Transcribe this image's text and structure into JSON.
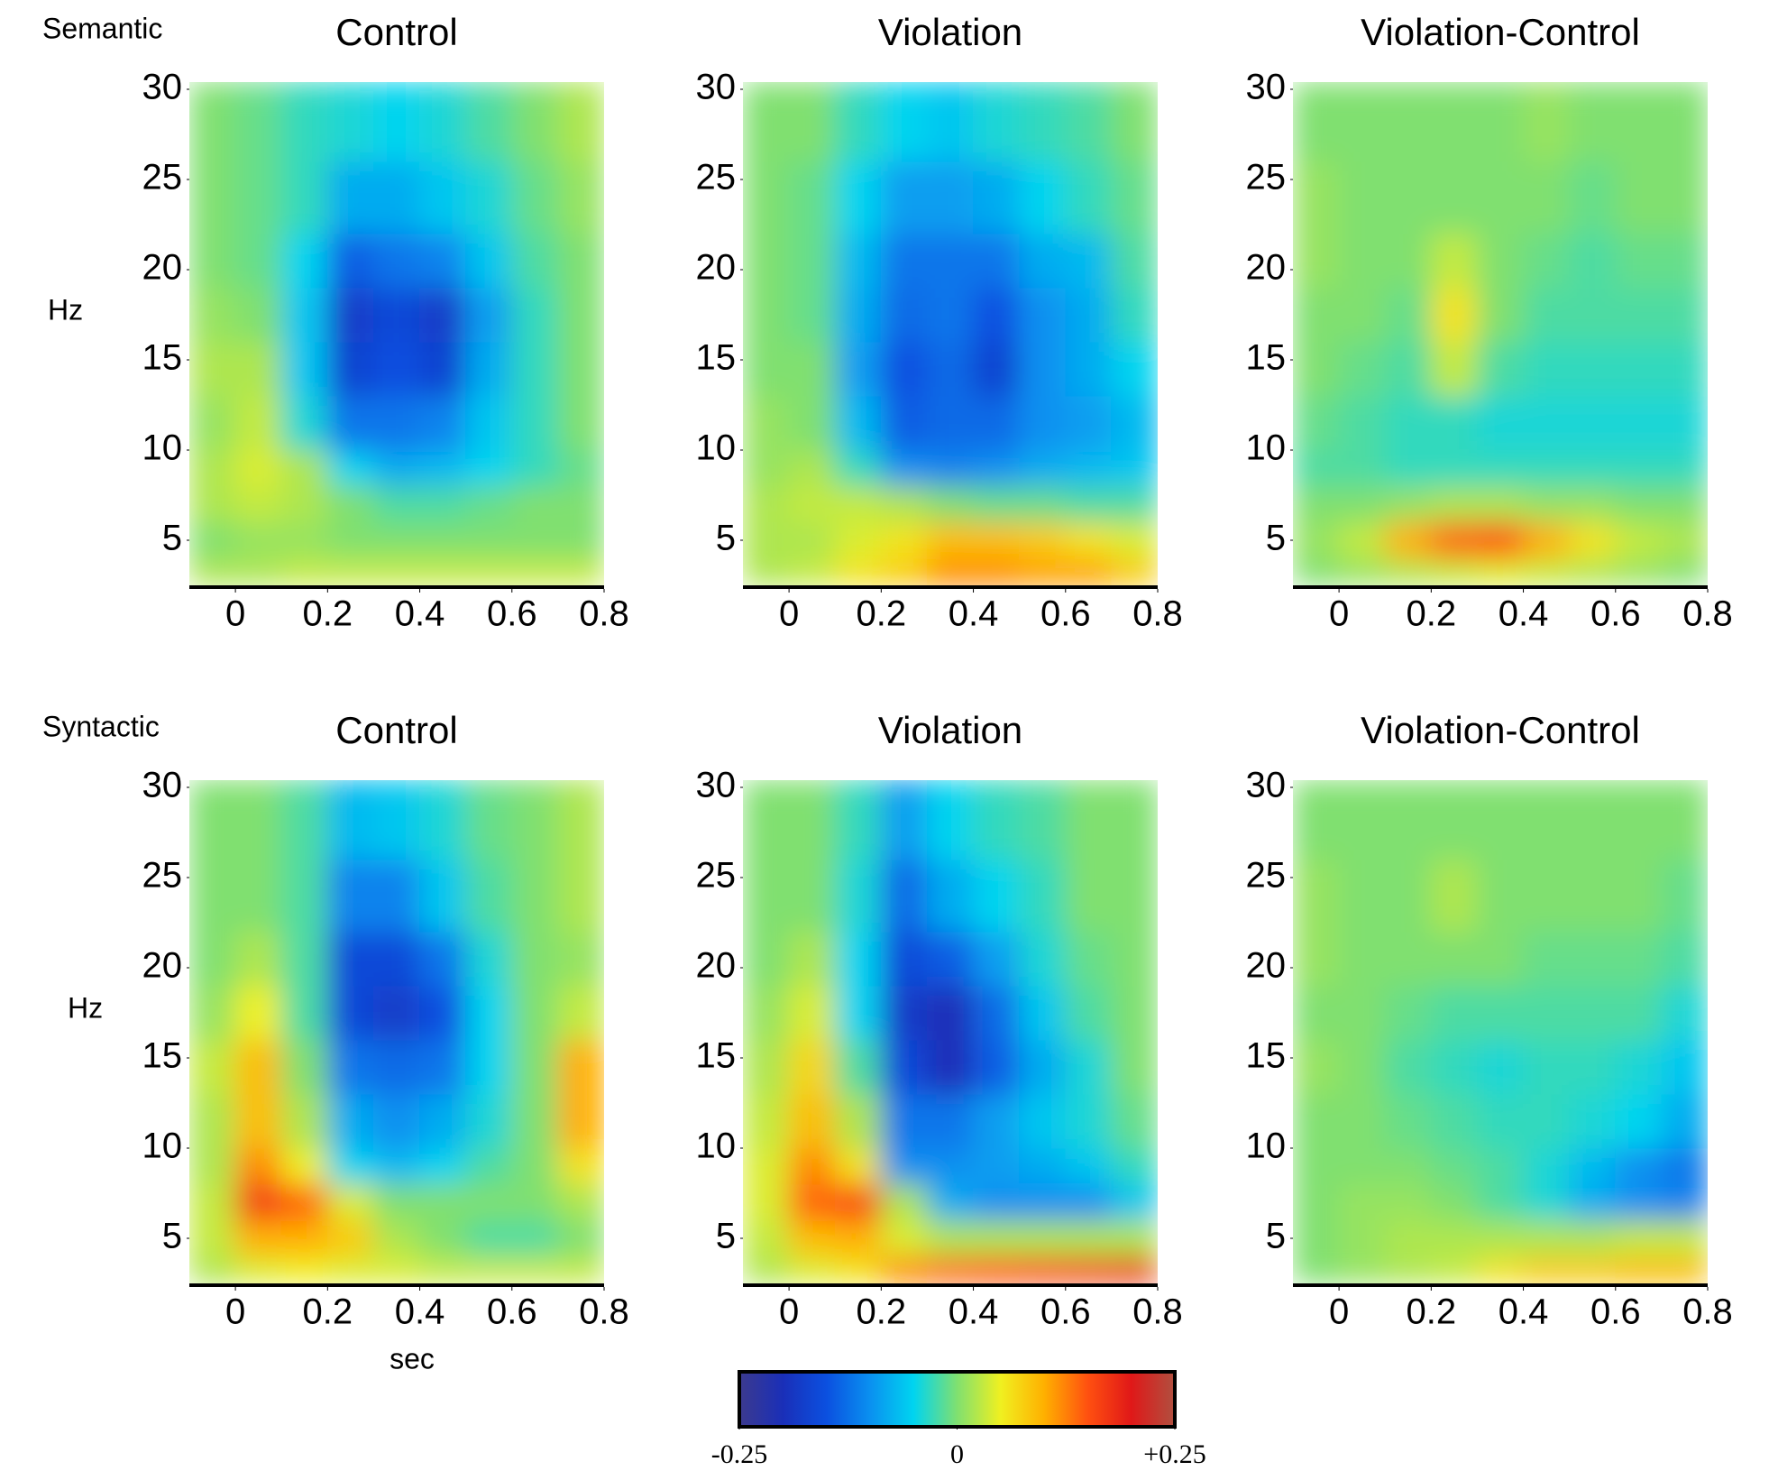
{
  "colorbar": {
    "clim": [
      -0.25,
      0.25
    ],
    "ticks": [
      -0.25,
      0,
      {
        "value": 0.25,
        "label": "+0.25"
      }
    ],
    "colormap": [
      "#3c3a8e",
      "#1a2fb8",
      "#0b50e0",
      "#0a90f0",
      "#00d4f0",
      "#80e070",
      "#f0f020",
      "#ffb000",
      "#ff5010",
      "#e01818",
      "#b05040"
    ]
  },
  "chart_data": [
    {
      "type": "heatmap",
      "row_label": "Semantic",
      "ylabel": "Hz",
      "title": "Control",
      "x_edges": [
        -0.1,
        0,
        0.1,
        0.2,
        0.3,
        0.4,
        0.5,
        0.6,
        0.7,
        0.8
      ],
      "y_edges": [
        2.5,
        4,
        6,
        8,
        10,
        13,
        16,
        19,
        22,
        26,
        30.4
      ],
      "xlim": [
        -0.1,
        0.8
      ],
      "ylim": [
        2.5,
        30.4
      ],
      "xticks": [
        0,
        0.2,
        0.4,
        0.6,
        0.8
      ],
      "yticks": [
        5,
        10,
        15,
        20,
        25,
        30
      ],
      "values": [
        [
          0.02,
          0.02,
          0.03,
          0.03,
          0.03,
          0.03,
          0.03,
          0.03,
          0.03
        ],
        [
          0,
          0.01,
          0.01,
          0,
          0,
          0,
          0,
          0,
          0
        ],
        [
          0.02,
          0.03,
          0.02,
          0,
          -0.02,
          -0.02,
          -0.01,
          0,
          0
        ],
        [
          0.02,
          0.04,
          0.02,
          -0.05,
          -0.08,
          -0.07,
          -0.05,
          -0.03,
          -0.01
        ],
        [
          0.01,
          0.03,
          -0.04,
          -0.12,
          -0.12,
          -0.11,
          -0.06,
          -0.03,
          0
        ],
        [
          0.02,
          0.02,
          -0.06,
          -0.17,
          -0.15,
          -0.17,
          -0.08,
          -0.03,
          0
        ],
        [
          0.01,
          0,
          -0.06,
          -0.18,
          -0.16,
          -0.18,
          -0.09,
          -0.03,
          0
        ],
        [
          0,
          -0.01,
          -0.05,
          -0.14,
          -0.12,
          -0.11,
          -0.06,
          -0.02,
          0
        ],
        [
          0,
          -0.01,
          -0.03,
          -0.08,
          -0.08,
          -0.06,
          -0.04,
          -0.01,
          0.01
        ],
        [
          0,
          -0.01,
          -0.03,
          -0.04,
          -0.05,
          -0.04,
          -0.02,
          0,
          0.02
        ]
      ]
    },
    {
      "type": "heatmap",
      "title": "Violation",
      "x_edges": [
        -0.1,
        0,
        0.1,
        0.2,
        0.3,
        0.4,
        0.5,
        0.6,
        0.7,
        0.8
      ],
      "y_edges": [
        2.5,
        4,
        6,
        8,
        10,
        13,
        16,
        19,
        22,
        26,
        30.4
      ],
      "xlim": [
        -0.1,
        0.8
      ],
      "ylim": [
        2.5,
        30.4
      ],
      "xticks": [
        0,
        0.2,
        0.4,
        0.6,
        0.8
      ],
      "yticks": [
        5,
        10,
        15,
        20,
        25,
        30
      ],
      "values": [
        [
          0.02,
          0.03,
          0.06,
          0.08,
          0.12,
          0.12,
          0.11,
          0.11,
          0.08
        ],
        [
          0.02,
          0.02,
          0.04,
          0.06,
          0.09,
          0.09,
          0.08,
          0.06,
          0.04
        ],
        [
          0.02,
          0.03,
          0.03,
          0.02,
          0,
          -0.01,
          -0.01,
          -0.02,
          -0.02
        ],
        [
          0.01,
          0.02,
          -0.03,
          -0.1,
          -0.11,
          -0.1,
          -0.08,
          -0.07,
          -0.06
        ],
        [
          0.01,
          0,
          -0.07,
          -0.14,
          -0.13,
          -0.13,
          -0.1,
          -0.09,
          -0.07
        ],
        [
          0,
          0,
          -0.09,
          -0.15,
          -0.13,
          -0.17,
          -0.1,
          -0.08,
          -0.05
        ],
        [
          0,
          -0.01,
          -0.08,
          -0.13,
          -0.12,
          -0.15,
          -0.1,
          -0.08,
          -0.03
        ],
        [
          0,
          -0.01,
          -0.07,
          -0.12,
          -0.12,
          -0.12,
          -0.08,
          -0.07,
          -0.02
        ],
        [
          0,
          -0.01,
          -0.05,
          -0.09,
          -0.09,
          -0.08,
          -0.05,
          -0.03,
          -0.01
        ],
        [
          0,
          0,
          -0.03,
          -0.05,
          -0.06,
          -0.04,
          -0.03,
          -0.02,
          0
        ]
      ]
    },
    {
      "type": "heatmap",
      "title": "Violation-Control",
      "x_edges": [
        -0.1,
        0,
        0.1,
        0.2,
        0.3,
        0.4,
        0.5,
        0.6,
        0.7,
        0.8
      ],
      "y_edges": [
        2.5,
        4,
        6,
        8,
        10,
        13,
        16,
        19,
        22,
        26,
        30.4
      ],
      "xlim": [
        -0.1,
        0.8
      ],
      "ylim": [
        2.5,
        30.4
      ],
      "xticks": [
        0,
        0.2,
        0.4,
        0.6,
        0.8
      ],
      "yticks": [
        5,
        10,
        15,
        20,
        25,
        30
      ],
      "values": [
        [
          0,
          0.01,
          0.02,
          0.03,
          0.04,
          0.03,
          0.02,
          0.01,
          0
        ],
        [
          0.01,
          0.03,
          0.1,
          0.14,
          0.15,
          0.1,
          0.06,
          0.03,
          0.02
        ],
        [
          0,
          0,
          0.01,
          0.02,
          0.02,
          0.01,
          0.01,
          0,
          0
        ],
        [
          -0.02,
          -0.02,
          -0.03,
          -0.03,
          -0.03,
          -0.03,
          -0.03,
          -0.03,
          -0.03
        ],
        [
          -0.01,
          -0.02,
          -0.03,
          -0.03,
          -0.04,
          -0.04,
          -0.04,
          -0.04,
          -0.04
        ],
        [
          0,
          -0.01,
          -0.02,
          0.03,
          -0.02,
          -0.03,
          -0.03,
          -0.03,
          -0.03
        ],
        [
          0,
          0,
          -0.01,
          0.06,
          0,
          -0.02,
          -0.02,
          -0.02,
          -0.02
        ],
        [
          0.01,
          0,
          0,
          0.03,
          0,
          -0.01,
          -0.02,
          -0.01,
          -0.01
        ],
        [
          0.01,
          0,
          0,
          0,
          0,
          0,
          -0.01,
          0,
          0
        ],
        [
          0,
          0,
          0,
          0,
          0,
          0.01,
          0,
          0,
          0
        ]
      ]
    },
    {
      "type": "heatmap",
      "row_label": "Syntactic",
      "ylabel": "Hz",
      "title": "Control",
      "xlabel": "sec",
      "x_edges": [
        -0.1,
        0,
        0.1,
        0.2,
        0.3,
        0.4,
        0.5,
        0.6,
        0.7,
        0.8
      ],
      "y_edges": [
        2.5,
        4,
        6,
        8,
        10,
        13,
        16,
        19,
        22,
        26,
        30.4
      ],
      "xlim": [
        -0.1,
        0.8
      ],
      "ylim": [
        2.5,
        30.4
      ],
      "xticks": [
        0,
        0.2,
        0.4,
        0.6,
        0.8
      ],
      "yticks": [
        5,
        10,
        15,
        20,
        25,
        30
      ],
      "values": [
        [
          0.02,
          0.04,
          0.05,
          0.04,
          0.04,
          0.03,
          0.03,
          0.03,
          0.03
        ],
        [
          0.03,
          0.1,
          0.1,
          0.08,
          0.02,
          0,
          -0.02,
          -0.02,
          0
        ],
        [
          0.03,
          0.17,
          0.14,
          0.04,
          0,
          0,
          0,
          0,
          0.02
        ],
        [
          0.02,
          0.12,
          0.05,
          -0.05,
          -0.07,
          -0.05,
          -0.02,
          0,
          0.06
        ],
        [
          0.02,
          0.09,
          0.02,
          -0.08,
          -0.1,
          -0.08,
          -0.04,
          0,
          0.1
        ],
        [
          0.03,
          0.09,
          0,
          -0.12,
          -0.13,
          -0.12,
          -0.05,
          0,
          0.1
        ],
        [
          0.01,
          0.05,
          -0.02,
          -0.16,
          -0.18,
          -0.15,
          -0.05,
          0,
          0.03
        ],
        [
          0,
          0.02,
          -0.02,
          -0.16,
          -0.16,
          -0.12,
          -0.04,
          0,
          0.01
        ],
        [
          0,
          0,
          -0.02,
          -0.11,
          -0.11,
          -0.06,
          -0.02,
          0,
          0.02
        ],
        [
          0,
          0,
          -0.02,
          -0.07,
          -0.06,
          -0.04,
          -0.01,
          0,
          0.02
        ]
      ]
    },
    {
      "type": "heatmap",
      "title": "Violation",
      "x_edges": [
        -0.1,
        0,
        0.1,
        0.2,
        0.3,
        0.4,
        0.5,
        0.6,
        0.7,
        0.8
      ],
      "y_edges": [
        2.5,
        4,
        6,
        8,
        10,
        13,
        16,
        19,
        22,
        26,
        30.4
      ],
      "xlim": [
        -0.1,
        0.8
      ],
      "ylim": [
        2.5,
        30.4
      ],
      "xticks": [
        0,
        0.2,
        0.4,
        0.6,
        0.8
      ],
      "yticks": [
        5,
        10,
        15,
        20,
        25,
        30
      ],
      "values": [
        [
          0.02,
          0.04,
          0.06,
          0.12,
          0.14,
          0.15,
          0.16,
          0.17,
          0.18
        ],
        [
          0.03,
          0.09,
          0.1,
          0.04,
          0.02,
          0.02,
          0.02,
          0.02,
          0.02
        ],
        [
          0.04,
          0.14,
          0.16,
          0.02,
          -0.08,
          -0.1,
          -0.1,
          -0.1,
          -0.06
        ],
        [
          0.04,
          0.12,
          0.06,
          -0.1,
          -0.1,
          -0.09,
          -0.08,
          -0.06,
          -0.03
        ],
        [
          0.03,
          0.09,
          0.02,
          -0.12,
          -0.12,
          -0.09,
          -0.06,
          -0.04,
          -0.01
        ],
        [
          0.02,
          0.07,
          -0.02,
          -0.16,
          -0.2,
          -0.14,
          -0.08,
          -0.04,
          0
        ],
        [
          0.01,
          0.04,
          -0.05,
          -0.18,
          -0.2,
          -0.13,
          -0.06,
          -0.02,
          0
        ],
        [
          0,
          0.02,
          -0.05,
          -0.16,
          -0.14,
          -0.09,
          -0.04,
          -0.01,
          0
        ],
        [
          0,
          0,
          -0.04,
          -0.13,
          -0.08,
          -0.05,
          -0.03,
          0,
          0
        ],
        [
          0,
          0,
          -0.03,
          -0.09,
          -0.05,
          -0.03,
          -0.02,
          0,
          0
        ]
      ]
    },
    {
      "type": "heatmap",
      "title": "Violation-Control",
      "x_edges": [
        -0.1,
        0,
        0.1,
        0.2,
        0.3,
        0.4,
        0.5,
        0.6,
        0.7,
        0.8
      ],
      "y_edges": [
        2.5,
        4,
        6,
        8,
        10,
        13,
        16,
        19,
        22,
        26,
        30.4
      ],
      "xlim": [
        -0.1,
        0.8
      ],
      "ylim": [
        2.5,
        30.4
      ],
      "xticks": [
        0,
        0.2,
        0.4,
        0.6,
        0.8
      ],
      "yticks": [
        5,
        10,
        15,
        20,
        25,
        30
      ],
      "values": [
        [
          0,
          0.01,
          0.02,
          0.03,
          0.06,
          0.08,
          0.08,
          0.09,
          0.09
        ],
        [
          0,
          0.01,
          0.02,
          0.02,
          0.02,
          0.02,
          0.02,
          0.03,
          0.03
        ],
        [
          0,
          0.01,
          0.01,
          0,
          -0.02,
          -0.04,
          -0.08,
          -0.1,
          -0.11
        ],
        [
          0,
          0,
          0,
          -0.01,
          -0.02,
          -0.04,
          -0.07,
          -0.1,
          -0.12
        ],
        [
          0,
          0,
          -0.01,
          -0.02,
          -0.03,
          -0.03,
          -0.04,
          -0.05,
          -0.08
        ],
        [
          0.01,
          0,
          -0.02,
          -0.03,
          -0.04,
          -0.03,
          -0.03,
          -0.04,
          -0.06
        ],
        [
          0,
          0,
          -0.01,
          -0.02,
          -0.02,
          -0.02,
          -0.02,
          -0.02,
          -0.04
        ],
        [
          0.01,
          0,
          0,
          0,
          0,
          -0.01,
          -0.01,
          -0.01,
          -0.02
        ],
        [
          0.01,
          0,
          0,
          0.02,
          0,
          0,
          0,
          0,
          -0.01
        ],
        [
          0,
          0,
          0,
          0,
          0,
          0,
          0,
          0,
          0
        ]
      ]
    }
  ]
}
